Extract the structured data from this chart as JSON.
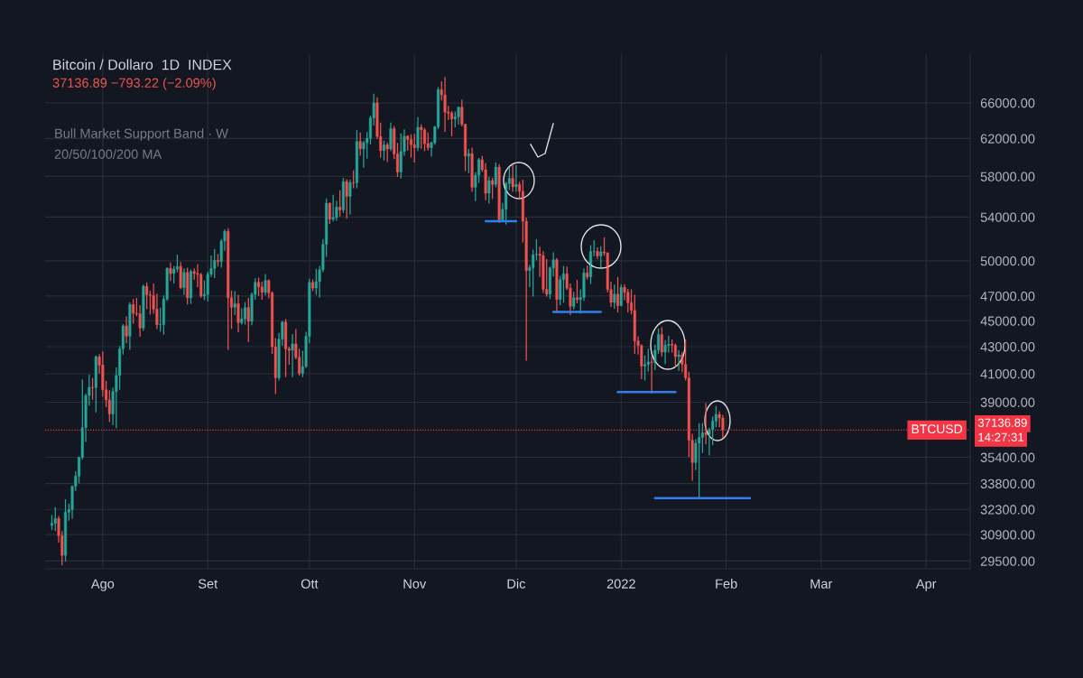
{
  "chart_data": {
    "type": "candlestick",
    "title": "Bitcoin / Dollaro  1D  INDEX",
    "subtitle": "37136.89 −793.22 (−2.09%)",
    "annotations": [
      "37136.89",
      "14:27:31",
      "Bull Market Support Band · W",
      "20/50/100/200 MA"
    ],
    "x": [
      "2021-07-17",
      "2021-07-18",
      "2021-07-19",
      "2021-07-20",
      "2021-07-21",
      "2021-07-22",
      "2021-07-23",
      "2021-07-24",
      "2021-07-25",
      "2021-07-26",
      "2021-07-27",
      "2021-07-28",
      "2021-07-29",
      "2021-07-30",
      "2021-07-31",
      "2021-08-01",
      "2021-08-02",
      "2021-08-03",
      "2021-08-04",
      "2021-08-05",
      "2021-08-06",
      "2021-08-07",
      "2021-08-08",
      "2021-08-09",
      "2021-08-10",
      "2021-08-11",
      "2021-08-12",
      "2021-08-13",
      "2021-08-14",
      "2021-08-15",
      "2021-08-16",
      "2021-08-17",
      "2021-08-18",
      "2021-08-19",
      "2021-08-20",
      "2021-08-21",
      "2021-08-22",
      "2021-08-23",
      "2021-08-24",
      "2021-08-25",
      "2021-08-26",
      "2021-08-27",
      "2021-08-28",
      "2021-08-29",
      "2021-08-30",
      "2021-08-31",
      "2021-09-01",
      "2021-09-02",
      "2021-09-03",
      "2021-09-04",
      "2021-09-05",
      "2021-09-06",
      "2021-09-07",
      "2021-09-08",
      "2021-09-09",
      "2021-09-10",
      "2021-09-11",
      "2021-09-12",
      "2021-09-13",
      "2021-09-14",
      "2021-09-15",
      "2021-09-16",
      "2021-09-17",
      "2021-09-18",
      "2021-09-19",
      "2021-09-20",
      "2021-09-21",
      "2021-09-22",
      "2021-09-23",
      "2021-09-24",
      "2021-09-25",
      "2021-09-26",
      "2021-09-27",
      "2021-09-28",
      "2021-09-29",
      "2021-09-30",
      "2021-10-01",
      "2021-10-02",
      "2021-10-03",
      "2021-10-04",
      "2021-10-05",
      "2021-10-06",
      "2021-10-07",
      "2021-10-08",
      "2021-10-09",
      "2021-10-10",
      "2021-10-11",
      "2021-10-12",
      "2021-10-13",
      "2021-10-14",
      "2021-10-15",
      "2021-10-16",
      "2021-10-17",
      "2021-10-18",
      "2021-10-19",
      "2021-10-20",
      "2021-10-21",
      "2021-10-22",
      "2021-10-23",
      "2021-10-24",
      "2021-10-25",
      "2021-10-26",
      "2021-10-27",
      "2021-10-28",
      "2021-10-29",
      "2021-10-30",
      "2021-10-31",
      "2021-11-01",
      "2021-11-02",
      "2021-11-03",
      "2021-11-04",
      "2021-11-05",
      "2021-11-06",
      "2021-11-07",
      "2021-11-08",
      "2021-11-09",
      "2021-11-10",
      "2021-11-11",
      "2021-11-12",
      "2021-11-13",
      "2021-11-14",
      "2021-11-15",
      "2021-11-16",
      "2021-11-17",
      "2021-11-18",
      "2021-11-19",
      "2021-11-20",
      "2021-11-21",
      "2021-11-22",
      "2021-11-23",
      "2021-11-24",
      "2021-11-25",
      "2021-11-26",
      "2021-11-27",
      "2021-11-28",
      "2021-11-29",
      "2021-11-30",
      "2021-12-01",
      "2021-12-02",
      "2021-12-03",
      "2021-12-04",
      "2021-12-05",
      "2021-12-06",
      "2021-12-07",
      "2021-12-08",
      "2021-12-09",
      "2021-12-10",
      "2021-12-11",
      "2021-12-12",
      "2021-12-13",
      "2021-12-14",
      "2021-12-15",
      "2021-12-16",
      "2021-12-17",
      "2021-12-18",
      "2021-12-19",
      "2021-12-20",
      "2021-12-21",
      "2021-12-22",
      "2021-12-23",
      "2021-12-24",
      "2021-12-25",
      "2021-12-26",
      "2021-12-27",
      "2021-12-28",
      "2021-12-29",
      "2021-12-30",
      "2021-12-31",
      "2022-01-01",
      "2022-01-02",
      "2022-01-03",
      "2022-01-04",
      "2022-01-05",
      "2022-01-06",
      "2022-01-07",
      "2022-01-08",
      "2022-01-09",
      "2022-01-10",
      "2022-01-11",
      "2022-01-12",
      "2022-01-13",
      "2022-01-14",
      "2022-01-15",
      "2022-01-16",
      "2022-01-17",
      "2022-01-18",
      "2022-01-19",
      "2022-01-20",
      "2022-01-21",
      "2022-01-22",
      "2022-01-23",
      "2022-01-24",
      "2022-01-25",
      "2022-01-26",
      "2022-01-27",
      "2022-01-28",
      "2022-01-29",
      "2022-01-30",
      "2022-01-31"
    ],
    "ohlc": [
      [
        31400,
        31950,
        31180,
        31520
      ],
      [
        31520,
        32400,
        31120,
        31780
      ],
      [
        31780,
        31900,
        30500,
        30840
      ],
      [
        30840,
        31060,
        29300,
        29790
      ],
      [
        29790,
        32850,
        29500,
        32140
      ],
      [
        32140,
        32600,
        31700,
        32290
      ],
      [
        32290,
        33650,
        31800,
        33640
      ],
      [
        33640,
        34500,
        33400,
        34250
      ],
      [
        34250,
        35400,
        33850,
        35400
      ],
      [
        35400,
        40550,
        35300,
        37300
      ],
      [
        37300,
        39550,
        36400,
        39460
      ],
      [
        39460,
        40900,
        38800,
        40030
      ],
      [
        40030,
        40650,
        39200,
        40010
      ],
      [
        40010,
        42300,
        38350,
        42240
      ],
      [
        42240,
        42400,
        41060,
        41630
      ],
      [
        41630,
        42600,
        39420,
        39860
      ],
      [
        39860,
        40450,
        38700,
        39150
      ],
      [
        39150,
        39780,
        37700,
        38200
      ],
      [
        38200,
        39970,
        37500,
        39740
      ],
      [
        39740,
        41420,
        37300,
        40880
      ],
      [
        40880,
        43000,
        39900,
        42830
      ],
      [
        42830,
        44700,
        42450,
        44600
      ],
      [
        44600,
        45300,
        43300,
        43800
      ],
      [
        43800,
        46450,
        42800,
        46300
      ],
      [
        46300,
        46700,
        44800,
        45600
      ],
      [
        45600,
        46800,
        45400,
        45560
      ],
      [
        45560,
        46200,
        43800,
        44430
      ],
      [
        44430,
        47900,
        44250,
        47820
      ],
      [
        47820,
        48100,
        45970,
        47100
      ],
      [
        47100,
        47400,
        45540,
        47050
      ],
      [
        47050,
        48000,
        45600,
        45930
      ],
      [
        45930,
        47150,
        44400,
        44690
      ],
      [
        44690,
        46000,
        44200,
        44700
      ],
      [
        44700,
        47000,
        43950,
        46760
      ],
      [
        46760,
        49400,
        46650,
        49340
      ],
      [
        49340,
        49800,
        48300,
        48900
      ],
      [
        48900,
        49500,
        48100,
        49290
      ],
      [
        49290,
        50500,
        49050,
        49510
      ],
      [
        49510,
        49850,
        47600,
        47700
      ],
      [
        47700,
        49300,
        47150,
        48990
      ],
      [
        48990,
        49350,
        46350,
        46850
      ],
      [
        46850,
        49200,
        46400,
        49070
      ],
      [
        49070,
        49300,
        48400,
        48900
      ],
      [
        48900,
        49650,
        47800,
        48810
      ],
      [
        48810,
        48900,
        46900,
        46990
      ],
      [
        46990,
        48250,
        46700,
        47130
      ],
      [
        47130,
        49000,
        46600,
        48830
      ],
      [
        48830,
        50400,
        48650,
        49330
      ],
      [
        49330,
        51000,
        48550,
        50040
      ],
      [
        50040,
        50550,
        49550,
        49940
      ],
      [
        49940,
        51900,
        49450,
        51770
      ],
      [
        51770,
        52800,
        50950,
        52660
      ],
      [
        52660,
        52900,
        42800,
        46860
      ],
      [
        46860,
        47400,
        44400,
        46080
      ],
      [
        46080,
        47350,
        45500,
        46370
      ],
      [
        46370,
        47050,
        44150,
        44850
      ],
      [
        44850,
        45950,
        44750,
        45160
      ],
      [
        45160,
        46450,
        44750,
        46060
      ],
      [
        46060,
        46800,
        43400,
        44960
      ],
      [
        44960,
        47250,
        44700,
        47130
      ],
      [
        47130,
        48450,
        46750,
        48150
      ],
      [
        48150,
        48500,
        47050,
        47760
      ],
      [
        47760,
        48150,
        46750,
        47300
      ],
      [
        47300,
        48800,
        47100,
        48300
      ],
      [
        48300,
        48350,
        46850,
        47260
      ],
      [
        47260,
        47330,
        42500,
        42990
      ],
      [
        42990,
        43600,
        39600,
        40700
      ],
      [
        40700,
        44000,
        40550,
        43570
      ],
      [
        43570,
        44950,
        43100,
        44900
      ],
      [
        44900,
        45100,
        40800,
        42840
      ],
      [
        42840,
        42950,
        41700,
        42720
      ],
      [
        42720,
        43900,
        40800,
        43210
      ],
      [
        43210,
        44300,
        42100,
        42200
      ],
      [
        42200,
        42800,
        40900,
        41030
      ],
      [
        41030,
        42650,
        40800,
        41520
      ],
      [
        41520,
        44100,
        41450,
        43790
      ],
      [
        43790,
        48400,
        43300,
        48140
      ],
      [
        48140,
        48350,
        47450,
        47660
      ],
      [
        47660,
        49250,
        47150,
        48200
      ],
      [
        48200,
        49500,
        46900,
        49220
      ],
      [
        49220,
        51900,
        49050,
        51470
      ],
      [
        51470,
        55750,
        50400,
        55320
      ],
      [
        55320,
        55350,
        53400,
        53800
      ],
      [
        53800,
        56100,
        53650,
        53960
      ],
      [
        53960,
        55500,
        53700,
        54960
      ],
      [
        54960,
        56550,
        54100,
        54680
      ],
      [
        54680,
        57800,
        54450,
        57480
      ],
      [
        57480,
        57650,
        53900,
        56000
      ],
      [
        56000,
        57600,
        54300,
        57370
      ],
      [
        57370,
        58550,
        56850,
        57350
      ],
      [
        57350,
        62850,
        56850,
        61670
      ],
      [
        61670,
        62600,
        60200,
        60880
      ],
      [
        60880,
        61700,
        58950,
        61530
      ],
      [
        61530,
        62650,
        59900,
        62010
      ],
      [
        62010,
        64450,
        61400,
        64280
      ],
      [
        64280,
        67000,
        63500,
        66000
      ],
      [
        66000,
        66600,
        62000,
        62210
      ],
      [
        62210,
        63700,
        60000,
        60690
      ],
      [
        60690,
        61700,
        59700,
        61300
      ],
      [
        61300,
        61500,
        59550,
        60860
      ],
      [
        60860,
        63700,
        60700,
        63080
      ],
      [
        63080,
        63300,
        59850,
        60330
      ],
      [
        60330,
        61450,
        58000,
        58450
      ],
      [
        58450,
        62500,
        57850,
        60590
      ],
      [
        60590,
        62950,
        60200,
        62250
      ],
      [
        62250,
        62300,
        60750,
        61880
      ],
      [
        61880,
        62400,
        60000,
        61320
      ],
      [
        61320,
        62450,
        59500,
        61000
      ],
      [
        61000,
        64300,
        60700,
        63230
      ],
      [
        63230,
        63500,
        60950,
        62940
      ],
      [
        62940,
        63100,
        60700,
        61440
      ],
      [
        61440,
        62600,
        60750,
        61010
      ],
      [
        61010,
        61600,
        60100,
        61530
      ],
      [
        61530,
        63300,
        61350,
        63300
      ],
      [
        63300,
        67800,
        63100,
        67550
      ],
      [
        67550,
        68500,
        66350,
        66940
      ],
      [
        66940,
        69000,
        62800,
        64930
      ],
      [
        64930,
        65600,
        64100,
        64830
      ],
      [
        64830,
        65000,
        62300,
        64160
      ],
      [
        64160,
        64950,
        63300,
        64400
      ],
      [
        64400,
        65500,
        63600,
        65500
      ],
      [
        65500,
        66300,
        63400,
        63560
      ],
      [
        63560,
        63560,
        58600,
        60110
      ],
      [
        60110,
        60800,
        58400,
        60370
      ],
      [
        60370,
        60950,
        56500,
        56900
      ],
      [
        56900,
        58400,
        55600,
        58120
      ],
      [
        58120,
        59850,
        57400,
        59730
      ],
      [
        59730,
        60050,
        58500,
        58690
      ],
      [
        58690,
        59300,
        55650,
        56300
      ],
      [
        56300,
        57900,
        55350,
        57570
      ],
      [
        57570,
        57800,
        55800,
        57180
      ],
      [
        57180,
        59400,
        56950,
        58960
      ],
      [
        58960,
        59200,
        53500,
        53730
      ],
      [
        53730,
        55300,
        53650,
        54740
      ],
      [
        54740,
        57400,
        53350,
        57270
      ],
      [
        57270,
        58900,
        56700,
        57810
      ],
      [
        57810,
        59200,
        56500,
        56950
      ],
      [
        56950,
        59100,
        56500,
        57180
      ],
      [
        57180,
        57400,
        55850,
        56500
      ],
      [
        56500,
        57600,
        51700,
        53600
      ],
      [
        53600,
        53900,
        42000,
        49150
      ],
      [
        49150,
        49600,
        47800,
        49400
      ],
      [
        49400,
        50950,
        47000,
        50540
      ],
      [
        50540,
        51900,
        50100,
        50580
      ],
      [
        50580,
        51200,
        48650,
        50470
      ],
      [
        50470,
        50800,
        47300,
        47560
      ],
      [
        47560,
        50100,
        47000,
        47150
      ],
      [
        47150,
        49450,
        46800,
        49380
      ],
      [
        49380,
        50700,
        48700,
        50090
      ],
      [
        50090,
        50200,
        45700,
        46720
      ],
      [
        46720,
        48650,
        46300,
        48380
      ],
      [
        48380,
        49500,
        46500,
        48870
      ],
      [
        48870,
        49450,
        47550,
        47650
      ],
      [
        47650,
        48000,
        45500,
        46150
      ],
      [
        46150,
        47300,
        45950,
        46860
      ],
      [
        46860,
        48300,
        46450,
        46700
      ],
      [
        46700,
        47500,
        45600,
        46880
      ],
      [
        46880,
        49300,
        46650,
        48950
      ],
      [
        48950,
        49550,
        48450,
        48600
      ],
      [
        48600,
        51350,
        48050,
        50820
      ],
      [
        50820,
        51800,
        50450,
        50840
      ],
      [
        50840,
        51150,
        50200,
        50430
      ],
      [
        50430,
        51250,
        49450,
        50800
      ],
      [
        50800,
        52050,
        50500,
        50700
      ],
      [
        50700,
        50700,
        47350,
        47540
      ],
      [
        47540,
        48150,
        46150,
        46470
      ],
      [
        46470,
        47900,
        46000,
        47150
      ],
      [
        47150,
        48550,
        45700,
        46210
      ],
      [
        46210,
        47900,
        46200,
        47720
      ],
      [
        47720,
        47950,
        46700,
        47310
      ],
      [
        47310,
        47550,
        45700,
        46450
      ],
      [
        46450,
        47500,
        45550,
        45830
      ],
      [
        45830,
        47050,
        42500,
        43430
      ],
      [
        43430,
        43750,
        42450,
        43080
      ],
      [
        43080,
        43150,
        40650,
        41550
      ],
      [
        41550,
        42300,
        40550,
        41670
      ],
      [
        41670,
        42800,
        41200,
        41860
      ],
      [
        41860,
        42250,
        39650,
        41820
      ],
      [
        41820,
        43100,
        41300,
        42740
      ],
      [
        42740,
        44350,
        42500,
        43920
      ],
      [
        43920,
        44450,
        42300,
        42590
      ],
      [
        42590,
        43450,
        41750,
        43100
      ],
      [
        43100,
        43800,
        42600,
        43180
      ],
      [
        43180,
        43500,
        42600,
        43110
      ],
      [
        43110,
        43200,
        41550,
        42250
      ],
      [
        42250,
        42700,
        41250,
        42380
      ],
      [
        42380,
        42550,
        41150,
        41680
      ],
      [
        41680,
        43500,
        40550,
        40700
      ],
      [
        40700,
        41100,
        35450,
        36480
      ],
      [
        36480,
        36850,
        34000,
        35070
      ],
      [
        35070,
        36500,
        34650,
        36280
      ],
      [
        36280,
        37550,
        32950,
        36660
      ],
      [
        36660,
        37550,
        35700,
        36960
      ],
      [
        36960,
        38900,
        36250,
        36840
      ],
      [
        36840,
        37250,
        35550,
        37160
      ],
      [
        37160,
        38000,
        36200,
        37720
      ],
      [
        37720,
        38700,
        37350,
        38170
      ],
      [
        38170,
        38350,
        37350,
        37930.11
      ],
      [
        37930.11,
        38100,
        36650,
        37136.89
      ]
    ],
    "series": [
      {
        "type": "line",
        "color": "#2f80ed",
        "x": [
          "2021-11-22",
          "2021-12-01"
        ],
        "values": [
          53600,
          53600
        ]
      },
      {
        "type": "line",
        "color": "#2f80ed",
        "x": [
          "2021-12-12",
          "2021-12-26"
        ],
        "values": [
          45700,
          45700
        ]
      },
      {
        "type": "line",
        "color": "#2f80ed",
        "x": [
          "2021-12-31",
          "2022-01-17"
        ],
        "values": [
          39700,
          39700
        ]
      },
      {
        "type": "line",
        "color": "#2f80ed",
        "x": [
          "2022-01-11",
          "2022-02-08"
        ],
        "values": [
          32950,
          32950
        ]
      }
    ],
    "ref_lines": [
      {
        "axis": "y",
        "value": 37136.89,
        "label": "BTCUSD",
        "color": "#f23645",
        "line_style": "dotted"
      }
    ],
    "log": true,
    "xlim": [
      "2021-07-15",
      "2022-04-14"
    ],
    "xticks": [
      {
        "value": "2021-08-01",
        "label": "Ago"
      },
      {
        "value": "2021-09-01",
        "label": "Set"
      },
      {
        "value": "2021-10-01",
        "label": "Ott"
      },
      {
        "value": "2021-11-01",
        "label": "Nov"
      },
      {
        "value": "2021-12-01",
        "label": "Dic"
      },
      {
        "value": "2022-01-01",
        "label": "2022"
      },
      {
        "value": "2022-02-01",
        "label": "Feb"
      },
      {
        "value": "2022-03-01",
        "label": "Mar"
      },
      {
        "value": "2022-04-01",
        "label": "Apr"
      }
    ],
    "ylim": [
      29100,
      71900
    ],
    "yticks": [
      {
        "value": 29500,
        "label": "29500.00"
      },
      {
        "value": 30900,
        "label": "30900.00"
      },
      {
        "value": 32300,
        "label": "32300.00"
      },
      {
        "value": 33800,
        "label": "33800.00"
      },
      {
        "value": 35400,
        "label": "35400.00"
      },
      {
        "value": 39000,
        "label": "39000.00"
      },
      {
        "value": 41000,
        "label": "41000.00"
      },
      {
        "value": 43000,
        "label": "43000.00"
      },
      {
        "value": 45000,
        "label": "45000.00"
      },
      {
        "value": 47000,
        "label": "47000.00"
      },
      {
        "value": 50000,
        "label": "50000.00"
      },
      {
        "value": 54000,
        "label": "54000.00"
      },
      {
        "value": 58000,
        "label": "58000.00"
      },
      {
        "value": 62000,
        "label": "62000.00"
      },
      {
        "value": 66000,
        "label": "66000.00"
      }
    ],
    "grid": true
  }
}
